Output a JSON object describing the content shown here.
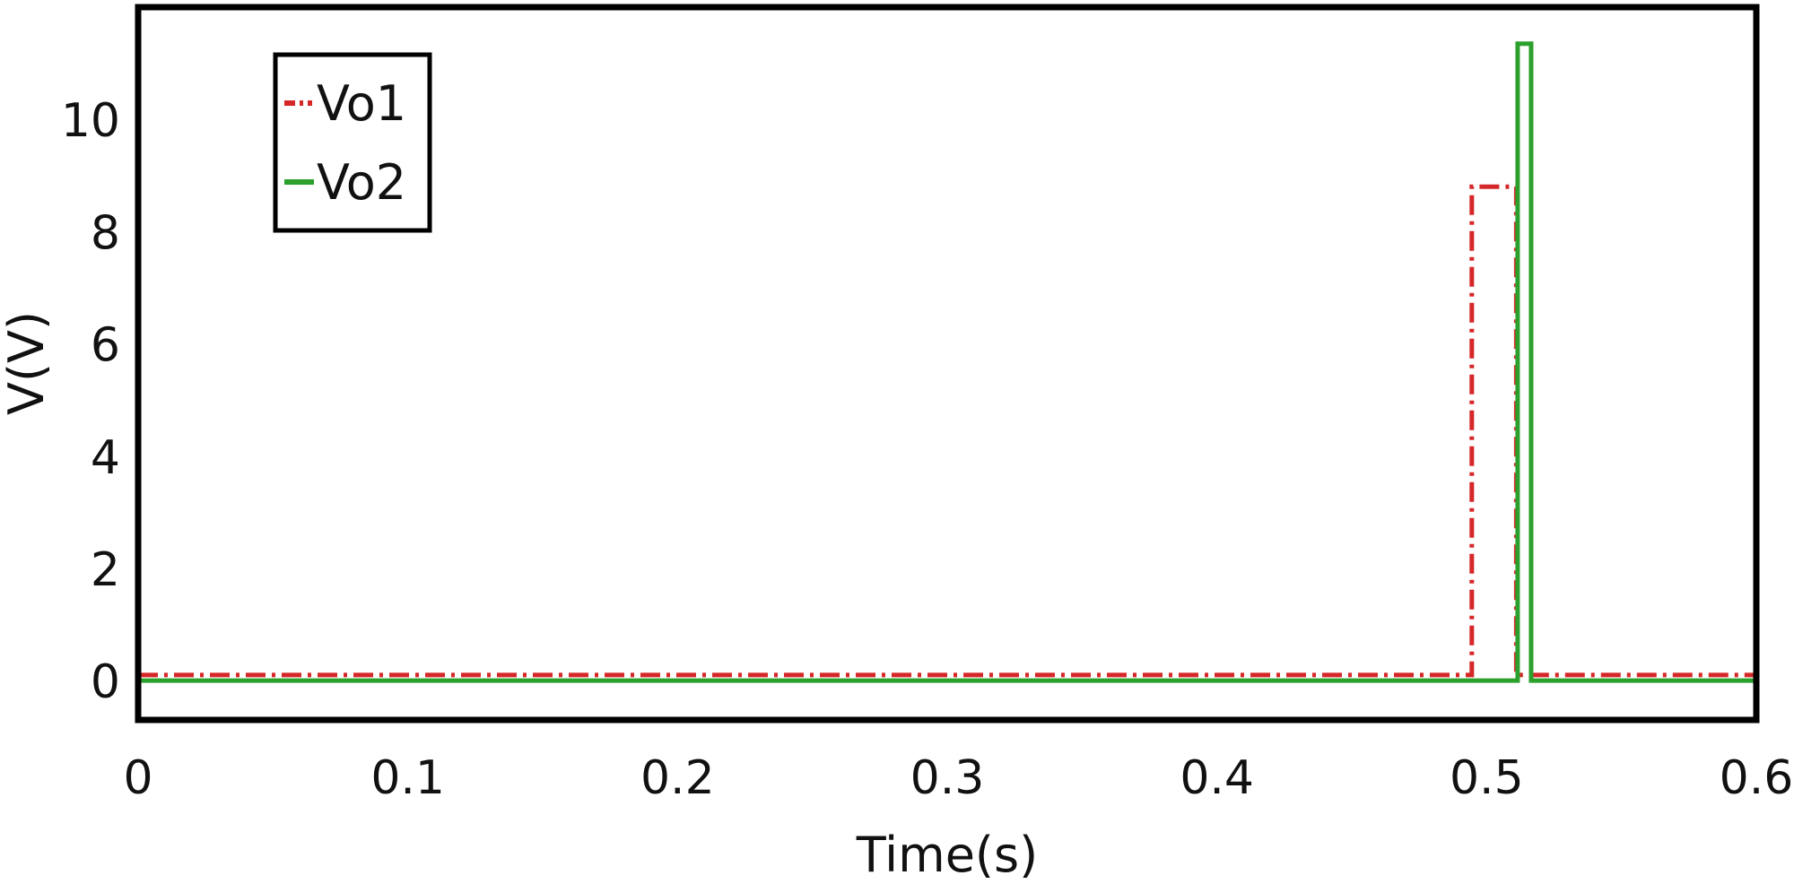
{
  "chart_data": {
    "type": "line",
    "title": "",
    "xlabel": "Time(s)",
    "ylabel": "V(V)",
    "xlim": [
      0,
      0.6
    ],
    "ylim": [
      -0.7,
      12
    ],
    "xticks": [
      0,
      0.1,
      0.2,
      0.3,
      0.4,
      0.5,
      0.6
    ],
    "xtick_labels": [
      "0",
      "0.1",
      "0.2",
      "0.3",
      "0.4",
      "0.5",
      "0.6"
    ],
    "yticks": [
      0,
      2,
      4,
      6,
      8,
      10
    ],
    "ytick_labels": [
      "0",
      "2",
      "4",
      "6",
      "8",
      "10"
    ],
    "grid": false,
    "legend_position": "top-left",
    "series": [
      {
        "name": "Vo1",
        "color": "#d62728",
        "style": "dash-dot",
        "x": [
          0,
          0.4945,
          0.4945,
          0.511,
          0.511,
          0.6
        ],
        "y": [
          0.1,
          0.1,
          8.8,
          8.8,
          0.1,
          0.1
        ]
      },
      {
        "name": "Vo2",
        "color": "#2ca02c",
        "style": "solid",
        "x": [
          0,
          0.5115,
          0.5115,
          0.5165,
          0.5165,
          0.6
        ],
        "y": [
          0,
          0,
          11.35,
          11.35,
          0,
          0
        ]
      }
    ]
  }
}
